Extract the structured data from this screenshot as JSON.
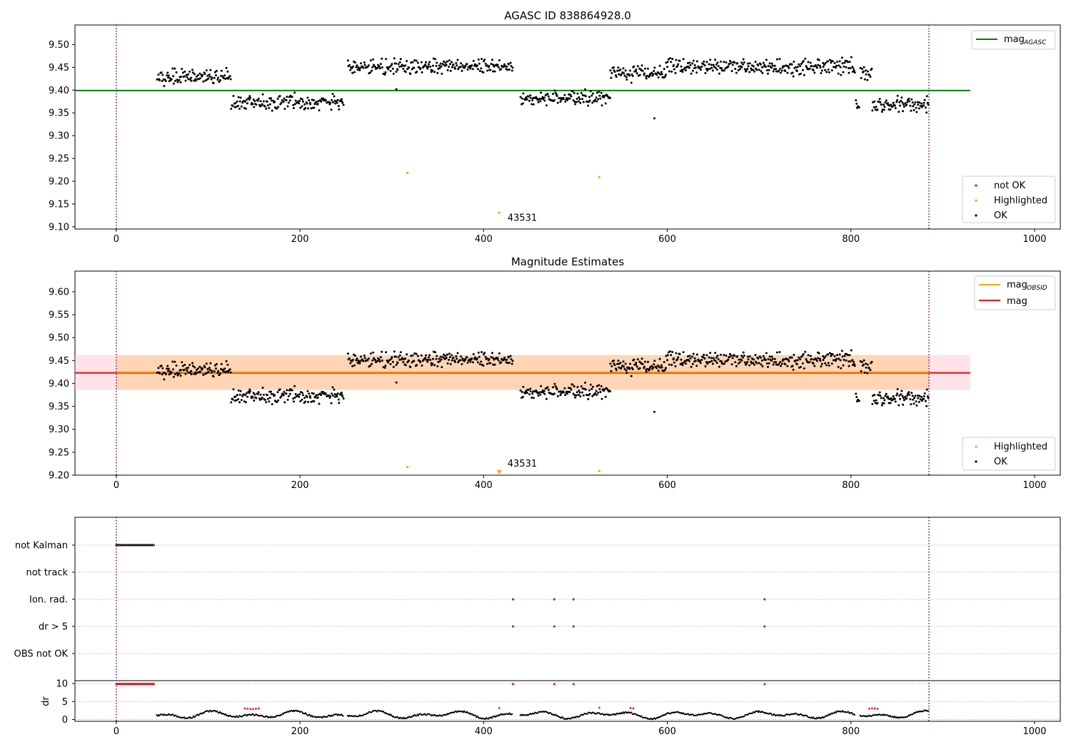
{
  "chart_data": [
    {
      "type": "scatter",
      "title": "AGASC ID 838864928.0",
      "xlim": [
        -45,
        1028
      ],
      "ylim": [
        9.095,
        9.543
      ],
      "xticks": [
        0,
        200,
        400,
        600,
        800,
        1000
      ],
      "yticks": [
        9.1,
        9.15,
        9.2,
        9.25,
        9.3,
        9.35,
        9.4,
        9.45,
        9.5
      ],
      "ytick_labels": [
        "9.10",
        "9.15",
        "9.20",
        "9.25",
        "9.30",
        "9.35",
        "9.40",
        "9.45",
        "9.50"
      ],
      "vlines": [
        0,
        885
      ],
      "hline": {
        "name": "mag_AGASC",
        "y": 9.399,
        "color": "#008000",
        "x_range": [
          -45,
          930
        ]
      },
      "legend_lines": [
        {
          "label": "mag",
          "sub": "AGASC",
          "color": "#008000"
        }
      ],
      "legend_points": [
        {
          "label": "not OK",
          "color": "#ff0000"
        },
        {
          "label": "Highlighted",
          "color": "#ffa500"
        },
        {
          "label": "OK",
          "color": "#000000"
        }
      ],
      "highlighted": [
        {
          "x": 317,
          "y": 9.218
        },
        {
          "x": 417,
          "y": 9.131
        },
        {
          "x": 526,
          "y": 9.209
        }
      ],
      "annotation": {
        "text": "43531",
        "x": 426,
        "y": 9.113
      },
      "outliers": [
        {
          "x": 305,
          "y": 9.402
        },
        {
          "x": 586,
          "y": 9.338
        },
        {
          "x": 809,
          "y": 9.362
        }
      ]
    },
    {
      "type": "scatter",
      "title": "Magnitude Estimates",
      "xlim": [
        -45,
        1028
      ],
      "ylim": [
        9.2,
        9.645
      ],
      "xticks": [
        0,
        200,
        400,
        600,
        800,
        1000
      ],
      "yticks": [
        9.2,
        9.25,
        9.3,
        9.35,
        9.4,
        9.45,
        9.5,
        9.55,
        9.6
      ],
      "ytick_labels": [
        "9.20",
        "9.25",
        "9.30",
        "9.35",
        "9.40",
        "9.45",
        "9.50",
        "9.55",
        "9.60"
      ],
      "vlines": [
        0,
        885
      ],
      "mag": 9.423,
      "mag_band": [
        9.386,
        9.462
      ],
      "mag_obsid_band": [
        9.386,
        9.462
      ],
      "legend_lines": [
        {
          "label": "mag",
          "sub": "OBSID",
          "color": "#ffa500"
        },
        {
          "label": "mag",
          "sub": "",
          "color": "#ff0000"
        }
      ],
      "legend_points": [
        {
          "label": "Highlighted",
          "color": "#ffa500"
        },
        {
          "label": "OK",
          "color": "#000000"
        }
      ],
      "highlighted": [
        {
          "x": 317,
          "y": 9.218
        },
        {
          "x": 526,
          "y": 9.209
        }
      ],
      "clipped_marker": {
        "x": 417,
        "y": 9.205
      },
      "annotation": {
        "text": "43531",
        "x": 426,
        "y": 9.219
      }
    },
    {
      "type": "scatter",
      "title": "",
      "xlim": [
        -45,
        1028
      ],
      "xticks": [
        0,
        200,
        400,
        600,
        800,
        1000
      ],
      "flag_rows": [
        "not Kalman",
        "not track",
        "Ion. rad.",
        "dr > 5",
        "OBS not OK"
      ],
      "flags": {
        "not Kalman": {
          "range": [
            0,
            42
          ]
        },
        "Ion. rad.": {
          "x": [
            432,
            477,
            498,
            706
          ]
        },
        "dr > 5": {
          "x": [
            432,
            477,
            498,
            706
          ]
        }
      },
      "dr_label": "dr",
      "dr_yticks": [
        0,
        5,
        10
      ],
      "dr_ylim": [
        -0.5,
        10.8
      ],
      "dr_clipped_x": [
        432,
        477,
        498,
        706
      ]
    }
  ]
}
